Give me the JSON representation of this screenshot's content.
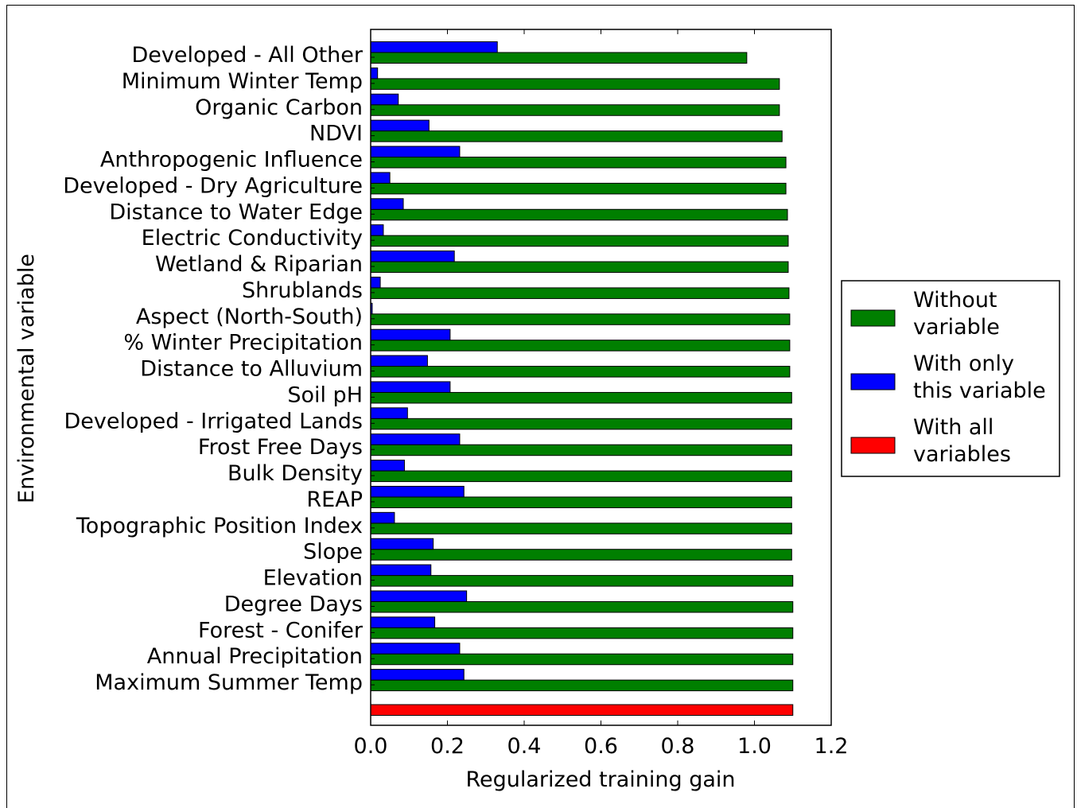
{
  "chart_data": {
    "type": "bar",
    "orientation": "horizontal",
    "xlabel": "Regularized training gain",
    "ylabel": "Environmental variable",
    "xlim": [
      0,
      1.2
    ],
    "xticks": [
      "0.0",
      "0.2",
      "0.4",
      "0.6",
      "0.8",
      "1.0",
      "1.2"
    ],
    "grid": false,
    "legend_position": "right",
    "categories": [
      "Developed - All Other",
      "Minimum Winter Temp",
      "Organic Carbon",
      "NDVI",
      "Anthropogenic Influence",
      "Developed - Dry Agriculture",
      "Distance to Water Edge",
      "Electric Conductivity",
      "Wetland & Riparian",
      "Shrublands",
      "Aspect (North-South)",
      "% Winter Precipitation",
      "Distance to Alluvium",
      "Soil pH",
      "Developed - Irrigated Lands",
      "Frost Free Days",
      "Bulk Density",
      "REAP",
      "Topographic Position Index",
      "Slope",
      "Elevation",
      "Degree Days",
      "Forest - Conifer",
      "Annual Precipitation",
      "Maximum Summer Temp"
    ],
    "series": [
      {
        "name": "Without variable",
        "color": "#007f00",
        "values": [
          0.98,
          1.065,
          1.065,
          1.072,
          1.082,
          1.082,
          1.086,
          1.088,
          1.088,
          1.09,
          1.092,
          1.092,
          1.092,
          1.097,
          1.097,
          1.097,
          1.097,
          1.097,
          1.097,
          1.097,
          1.1,
          1.1,
          1.1,
          1.1,
          1.1
        ]
      },
      {
        "name": "With only this variable",
        "color": "#0000ff",
        "values": [
          0.33,
          0.018,
          0.072,
          0.152,
          0.232,
          0.05,
          0.085,
          0.033,
          0.218,
          0.025,
          0.004,
          0.207,
          0.148,
          0.207,
          0.096,
          0.232,
          0.088,
          0.243,
          0.062,
          0.163,
          0.157,
          0.25,
          0.167,
          0.232,
          0.243
        ]
      }
    ],
    "all_variables": {
      "name": "With all variables",
      "color": "#ff0000",
      "value": 1.1
    },
    "legend": {
      "entries": [
        {
          "line1": "Without",
          "line2": "variable",
          "color": "#007f00"
        },
        {
          "line1": "With only",
          "line2": "this variable",
          "color": "#0000ff"
        },
        {
          "line1": "With all",
          "line2": "variables",
          "color": "#ff0000"
        }
      ]
    }
  }
}
